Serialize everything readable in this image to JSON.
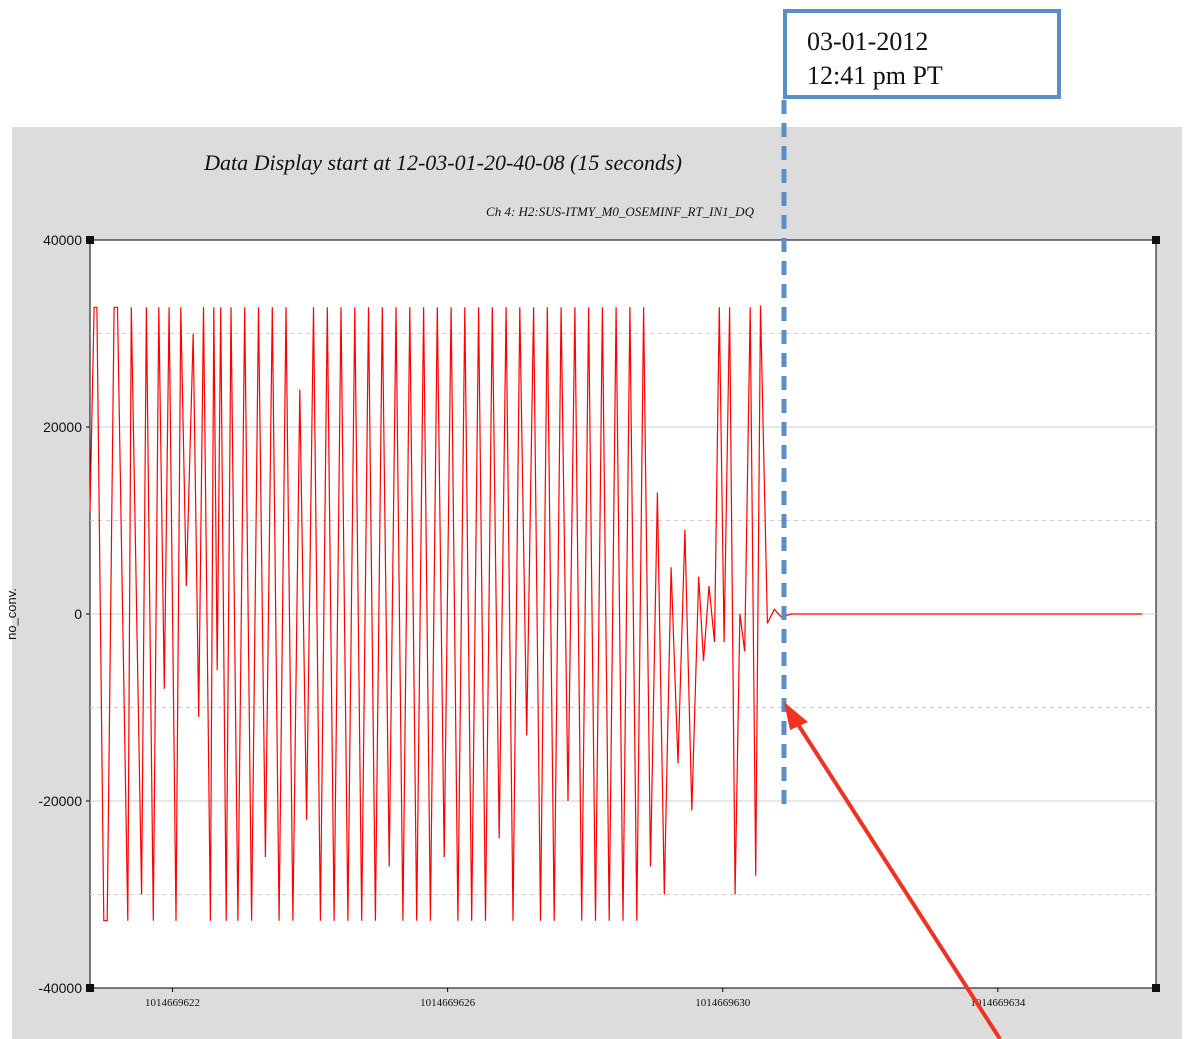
{
  "chart_data": {
    "type": "line",
    "title": "Data Display start at 12-03-01-20-40-08 (15 seconds)",
    "subtitle": "Ch 4: H2:SUS-ITMY_M0_OSEMINF_RT_IN1_DQ",
    "ylabel": "no_conv.",
    "xlim": [
      1014669620.8,
      1014669636.3
    ],
    "ylim": [
      -40000,
      40000
    ],
    "x_ticks": [
      1014669622,
      1014669626,
      1014669630,
      1014669634
    ],
    "x_tick_labels": [
      "1014669622",
      "1014669626",
      "1014669630",
      "1014669634"
    ],
    "y_ticks": [
      40000,
      20000,
      0,
      -20000,
      -40000
    ],
    "y_tick_labels": [
      "40000",
      "20000",
      "0",
      "-20000",
      "-40000"
    ],
    "grid": true,
    "series": [
      {
        "color": "#ff0000",
        "x": [
          1014669620.8,
          1014669620.86,
          1014669620.9,
          1014669621.0,
          1014669621.05,
          1014669621.15,
          1014669621.2,
          1014669621.35,
          1014669621.4,
          1014669621.55,
          1014669621.62,
          1014669621.72,
          1014669621.8,
          1014669621.88,
          1014669621.95,
          1014669622.05,
          1014669622.12,
          1014669622.2,
          1014669622.3,
          1014669622.38,
          1014669622.45,
          1014669622.55,
          1014669622.6,
          1014669622.65,
          1014669622.7,
          1014669622.78,
          1014669622.85,
          1014669622.95,
          1014669623.05,
          1014669623.15,
          1014669623.25,
          1014669623.35,
          1014669623.45,
          1014669623.55,
          1014669623.65,
          1014669623.75,
          1014669623.85,
          1014669623.95,
          1014669624.05,
          1014669624.15,
          1014669624.25,
          1014669624.35,
          1014669624.45,
          1014669624.55,
          1014669624.65,
          1014669624.75,
          1014669624.85,
          1014669624.95,
          1014669625.05,
          1014669625.15,
          1014669625.25,
          1014669625.35,
          1014669625.45,
          1014669625.55,
          1014669625.65,
          1014669625.75,
          1014669625.85,
          1014669625.95,
          1014669626.05,
          1014669626.15,
          1014669626.25,
          1014669626.35,
          1014669626.45,
          1014669626.55,
          1014669626.65,
          1014669626.75,
          1014669626.85,
          1014669626.95,
          1014669627.05,
          1014669627.15,
          1014669627.25,
          1014669627.35,
          1014669627.45,
          1014669627.55,
          1014669627.65,
          1014669627.75,
          1014669627.85,
          1014669627.95,
          1014669628.05,
          1014669628.15,
          1014669628.25,
          1014669628.35,
          1014669628.45,
          1014669628.55,
          1014669628.65,
          1014669628.75,
          1014669628.85,
          1014669628.95,
          1014669629.05,
          1014669629.15,
          1014669629.25,
          1014669629.35,
          1014669629.45,
          1014669629.55,
          1014669629.65,
          1014669629.72,
          1014669629.8,
          1014669629.88,
          1014669629.95,
          1014669630.02,
          1014669630.1,
          1014669630.18,
          1014669630.25,
          1014669630.32,
          1014669630.4,
          1014669630.48,
          1014669630.55,
          1014669630.65,
          1014669630.75,
          1014669630.85,
          1014669631.0,
          1014669632.0,
          1014669633.0,
          1014669634.0,
          1014669635.0,
          1014669636.1
        ],
        "y": [
          11000,
          32800,
          32800,
          -32800,
          -32800,
          32800,
          32800,
          -32800,
          32800,
          -30000,
          32800,
          -32800,
          32800,
          -8000,
          32800,
          -32800,
          32800,
          3000,
          30000,
          -11000,
          32800,
          -32800,
          32800,
          -6000,
          32800,
          -32800,
          32800,
          -32800,
          32800,
          -32800,
          32800,
          -26000,
          32800,
          -32800,
          32800,
          -32800,
          24000,
          -22000,
          32800,
          -32800,
          32800,
          -32800,
          32800,
          -32800,
          32800,
          -32800,
          32800,
          -32800,
          32800,
          -27000,
          32800,
          -32800,
          32800,
          -32800,
          32800,
          -32800,
          32800,
          -26000,
          32800,
          -32800,
          32800,
          -32800,
          32800,
          -32800,
          32800,
          -24000,
          32800,
          -32800,
          32800,
          -13000,
          32800,
          -32800,
          32800,
          -32800,
          32800,
          -20000,
          32800,
          -32800,
          32800,
          -32800,
          32800,
          -32800,
          32800,
          -32800,
          32800,
          -32800,
          32800,
          -27000,
          13000,
          -30000,
          5000,
          -16000,
          9000,
          -21000,
          4000,
          -5000,
          3000,
          -3000,
          32800,
          -3000,
          32800,
          -30000,
          0,
          -4000,
          32800,
          -28000,
          33000,
          -1000,
          500,
          -300,
          0,
          0,
          0,
          0,
          0,
          0
        ]
      }
    ]
  },
  "callout": {
    "line1": "03-01-2012",
    "line2": "12:41 pm PT"
  }
}
